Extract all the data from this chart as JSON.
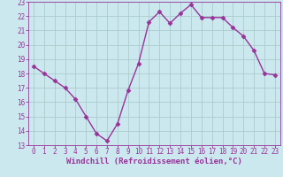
{
  "x": [
    0,
    1,
    2,
    3,
    4,
    5,
    6,
    7,
    8,
    9,
    10,
    11,
    12,
    13,
    14,
    15,
    16,
    17,
    18,
    19,
    20,
    21,
    22,
    23
  ],
  "y": [
    18.5,
    18.0,
    17.5,
    17.0,
    16.2,
    15.0,
    13.8,
    13.3,
    14.5,
    16.8,
    18.7,
    21.6,
    22.3,
    21.5,
    22.2,
    22.8,
    21.9,
    21.9,
    21.9,
    21.2,
    20.6,
    19.6,
    18.0,
    17.9
  ],
  "line_color": "#993399",
  "marker": "D",
  "marker_size": 2.5,
  "bg_color": "#cce8ef",
  "grid_color": "#aacccc",
  "xlabel": "Windchill (Refroidissement éolien,°C)",
  "ylim": [
    13,
    23
  ],
  "xlim_min": -0.5,
  "xlim_max": 23.5,
  "yticks": [
    13,
    14,
    15,
    16,
    17,
    18,
    19,
    20,
    21,
    22,
    23
  ],
  "xticks": [
    0,
    1,
    2,
    3,
    4,
    5,
    6,
    7,
    8,
    9,
    10,
    11,
    12,
    13,
    14,
    15,
    16,
    17,
    18,
    19,
    20,
    21,
    22,
    23
  ],
  "tick_color": "#993399",
  "tick_fontsize": 5.5,
  "xlabel_fontsize": 6.5,
  "xlabel_color": "#993399",
  "line_width": 1.0,
  "spine_color": "#993399"
}
